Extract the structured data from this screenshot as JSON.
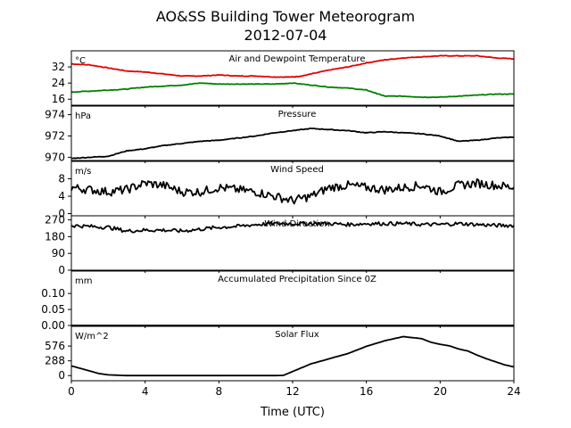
{
  "figure": {
    "title_line1": "AO&SS Building Tower Meteorogram",
    "title_line2": "2012-07-04",
    "xlabel": "Time (UTC)"
  },
  "chart_data": [
    {
      "type": "line",
      "title": "Air and Dewpoint Temperature",
      "unit": "°C",
      "xlim": [
        0,
        24
      ],
      "ylim": [
        13,
        40
      ],
      "yticks": [
        "32",
        "24",
        "16"
      ],
      "ytick_values": [
        32,
        24,
        16
      ],
      "series": [
        {
          "color": "#e00000",
          "x": [
            0,
            1,
            2,
            3,
            4,
            5,
            6,
            7,
            8,
            9,
            10,
            11,
            12,
            12.5,
            13,
            14,
            15,
            16,
            17,
            18,
            19,
            20,
            21,
            22,
            23,
            24
          ],
          "y": [
            33.5,
            33,
            31.5,
            30,
            29.5,
            28.5,
            27.5,
            27.5,
            28,
            27.5,
            27.5,
            27,
            27,
            27.5,
            28.5,
            30.5,
            32,
            34,
            35.5,
            36.5,
            37,
            37.5,
            37.5,
            37.5,
            36.5,
            36
          ]
        },
        {
          "color": "#008000",
          "x": [
            0,
            1,
            2,
            3,
            4,
            5,
            6,
            7,
            8,
            9,
            10,
            11,
            12,
            13,
            14,
            15,
            16,
            16.5,
            17,
            18,
            19,
            20,
            21,
            22,
            23,
            24
          ],
          "y": [
            19.5,
            20,
            20.5,
            21,
            22,
            22.5,
            23,
            24,
            23.5,
            23.5,
            23.5,
            23.5,
            24,
            23,
            22,
            21.5,
            20.5,
            19,
            17.5,
            17.5,
            17,
            17,
            17.5,
            18,
            18.5,
            18.5
          ]
        }
      ]
    },
    {
      "type": "line",
      "title": "Pressure",
      "unit": "hPa",
      "xlim": [
        0,
        24
      ],
      "ylim": [
        969.7,
        974.8
      ],
      "yticks": [
        "974",
        "972",
        "970"
      ],
      "ytick_values": [
        974,
        972,
        970
      ],
      "series": [
        {
          "color": "#000000",
          "x": [
            0,
            1,
            2,
            3,
            4,
            5,
            6,
            7,
            8,
            9,
            10,
            11,
            12,
            13,
            14,
            15,
            16,
            17,
            18,
            19,
            20,
            21,
            22,
            23,
            24
          ],
          "y": [
            969.9,
            970,
            970.1,
            970.6,
            970.8,
            971.1,
            971.3,
            971.5,
            971.6,
            971.8,
            972.0,
            972.3,
            972.5,
            972.7,
            972.6,
            972.5,
            972.3,
            972.4,
            972.3,
            972.2,
            972.0,
            971.5,
            971.6,
            971.8,
            971.9
          ]
        }
      ]
    },
    {
      "type": "line",
      "title": "Wind Speed",
      "unit": "m/s",
      "xlim": [
        0,
        24
      ],
      "ylim": [
        -0.5,
        12
      ],
      "yticks": [
        "8",
        "4",
        "0"
      ],
      "ytick_values": [
        8,
        4,
        0
      ],
      "series": [
        {
          "color": "#000000",
          "x": [
            0,
            1,
            2,
            3,
            4,
            5,
            6,
            7,
            8,
            9,
            10,
            11,
            12,
            13,
            14,
            15,
            16,
            17,
            18,
            19,
            20,
            21,
            22,
            23,
            24
          ],
          "y": [
            6,
            5.5,
            5,
            5.5,
            7,
            6.5,
            5,
            5,
            6,
            5.5,
            5,
            4,
            3,
            4,
            6,
            6.5,
            6,
            5.5,
            6,
            6.5,
            5,
            6.5,
            7,
            6.5,
            6
          ]
        }
      ]
    },
    {
      "type": "line",
      "title": "Wind Direction",
      "unit": "",
      "xlim": [
        0,
        24
      ],
      "ylim": [
        0,
        292
      ],
      "yticks": [
        "270",
        "180",
        "90",
        "0"
      ],
      "ytick_values": [
        270,
        180,
        90,
        0
      ],
      "series": [
        {
          "color": "#000000",
          "x": [
            0,
            1,
            2,
            3,
            4,
            5,
            6,
            7,
            8,
            9,
            10,
            11,
            12,
            13,
            14,
            15,
            16,
            17,
            18,
            19,
            20,
            21,
            22,
            23,
            24
          ],
          "y": [
            240,
            235,
            230,
            210,
            215,
            215,
            210,
            220,
            230,
            235,
            245,
            250,
            250,
            250,
            250,
            245,
            250,
            250,
            250,
            245,
            245,
            250,
            245,
            240,
            240
          ]
        }
      ]
    },
    {
      "type": "line",
      "title": "Accumulated Precipitation Since 0Z",
      "unit": "mm",
      "xlim": [
        0,
        24
      ],
      "ylim": [
        0,
        0.17
      ],
      "yticks": [
        "0.10",
        "0.05",
        "0.00"
      ],
      "ytick_values": [
        0.1,
        0.05,
        0.0
      ],
      "series": [
        {
          "color": "#000000",
          "x": [
            0,
            24
          ],
          "y": [
            0,
            0
          ]
        }
      ]
    },
    {
      "type": "line",
      "title": "Solar Flux",
      "unit": "W/m^2",
      "xlim": [
        0,
        24
      ],
      "ylim": [
        -100,
        960
      ],
      "yticks": [
        "576",
        "288",
        "0"
      ],
      "ytick_values": [
        576,
        288,
        0
      ],
      "series": [
        {
          "color": "#000000",
          "x": [
            0,
            0.5,
            1,
            1.5,
            2,
            3,
            4,
            6,
            8,
            10,
            11,
            11.5,
            12,
            13,
            14,
            15,
            16,
            17,
            18,
            19,
            19.5,
            20,
            20.5,
            21,
            21.5,
            22,
            22.5,
            23,
            23.5,
            24
          ],
          "y": [
            190,
            140,
            90,
            40,
            15,
            0,
            0,
            0,
            0,
            0,
            0,
            5,
            80,
            230,
            330,
            430,
            570,
            680,
            760,
            720,
            650,
            610,
            580,
            520,
            480,
            400,
            330,
            270,
            210,
            170
          ]
        }
      ]
    }
  ],
  "x_axis": {
    "ticks": [
      "0",
      "4",
      "8",
      "12",
      "16",
      "20",
      "24"
    ],
    "tick_values": [
      0,
      4,
      8,
      12,
      16,
      20,
      24
    ]
  }
}
